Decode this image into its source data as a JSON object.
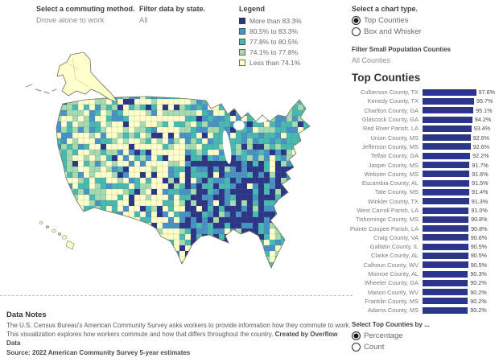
{
  "palette": [
    "#2b3589",
    "#4793c6",
    "#48bab3",
    "#a6dbb2",
    "#ffffce"
  ],
  "params": {
    "commute": {
      "label": "Select a commuting method.",
      "value": "Drove alone to work"
    },
    "state": {
      "label": "Filter data by state.",
      "value": "All"
    },
    "chart_type": {
      "label": "Select a chart type.",
      "options": [
        {
          "label": "Top Counties",
          "selected": true
        },
        {
          "label": "Box and Whisker",
          "selected": false
        }
      ]
    },
    "small_pop": {
      "label": "Filter Small Population Counties",
      "value": "All Counties"
    },
    "top_by": {
      "label": "Select Top Counties by ...",
      "options": [
        {
          "label": "Percentage",
          "selected": true
        },
        {
          "label": "Count",
          "selected": false
        }
      ]
    }
  },
  "legend": {
    "title": "Legend",
    "items": [
      {
        "label": "More than 83.3%",
        "color": "#2b3589"
      },
      {
        "label": "80.5% to 83.3%",
        "color": "#4793c6"
      },
      {
        "label": "77.8% to 80.5%",
        "color": "#48bab3"
      },
      {
        "label": "74.1% to 77.8%",
        "color": "#a6dbb2"
      },
      {
        "label": "Less than 74.1%",
        "color": "#ffffce"
      }
    ]
  },
  "chart_data": [
    {
      "type": "bar",
      "title": "Top Counties",
      "orientation": "horizontal",
      "categories": [
        "Culberson County, TX",
        "Kenedy County, TX",
        "Charlton County, GA",
        "Glascock County, GA",
        "Red River Parish, LA",
        "Union County, MS",
        "Jefferson County, MS",
        "Telfair County, GA",
        "Jasper County, MS",
        "Webster County, MS",
        "Escambia County, AL",
        "Tate County, MS",
        "Winkler County, TX",
        "West Carroll Parish, LA",
        "Tishomingo County, MS",
        "Pointe Coupee Parish, LA",
        "Craig County, VA",
        "Gallatin County, IL",
        "Clarke County, AL",
        "Calhoun County, WV",
        "Monroe County, AL",
        "Wheeler County, GA",
        "Mason County, WV",
        "Franklin County, MS",
        "Adams County, MS"
      ],
      "values": [
        97.6,
        95.7,
        95.1,
        94.2,
        93.4,
        92.6,
        92.6,
        92.2,
        91.7,
        91.6,
        91.5,
        91.4,
        91.3,
        91.0,
        90.8,
        90.8,
        90.6,
        90.5,
        90.5,
        90.5,
        90.3,
        90.2,
        90.2,
        90.2,
        90.2
      ],
      "value_suffix": "%",
      "bar_color": "#2b3589",
      "xlim": [
        50,
        100
      ],
      "legend_position": "none"
    },
    {
      "type": "heatmap",
      "subtype": "us-county-choropleth",
      "title": "",
      "bins": [
        "More than 83.3%",
        "80.5% to 83.3%",
        "77.8% to 80.5%",
        "74.1% to 77.8%",
        "Less than 74.1%"
      ],
      "palette": [
        "#2b3589",
        "#4793c6",
        "#48bab3",
        "#a6dbb2",
        "#ffffce"
      ]
    }
  ],
  "notes": {
    "title": "Data Notes",
    "body": "The U.S. Census Bureau's American Community Survey asks workers to provide information how they commute to work. This visualization explores how workers commute and how that differs throughout the country. ",
    "credit": "Created by Overflow Data",
    "source": "Source: 2022 American Community Survey 5-year estimates"
  }
}
